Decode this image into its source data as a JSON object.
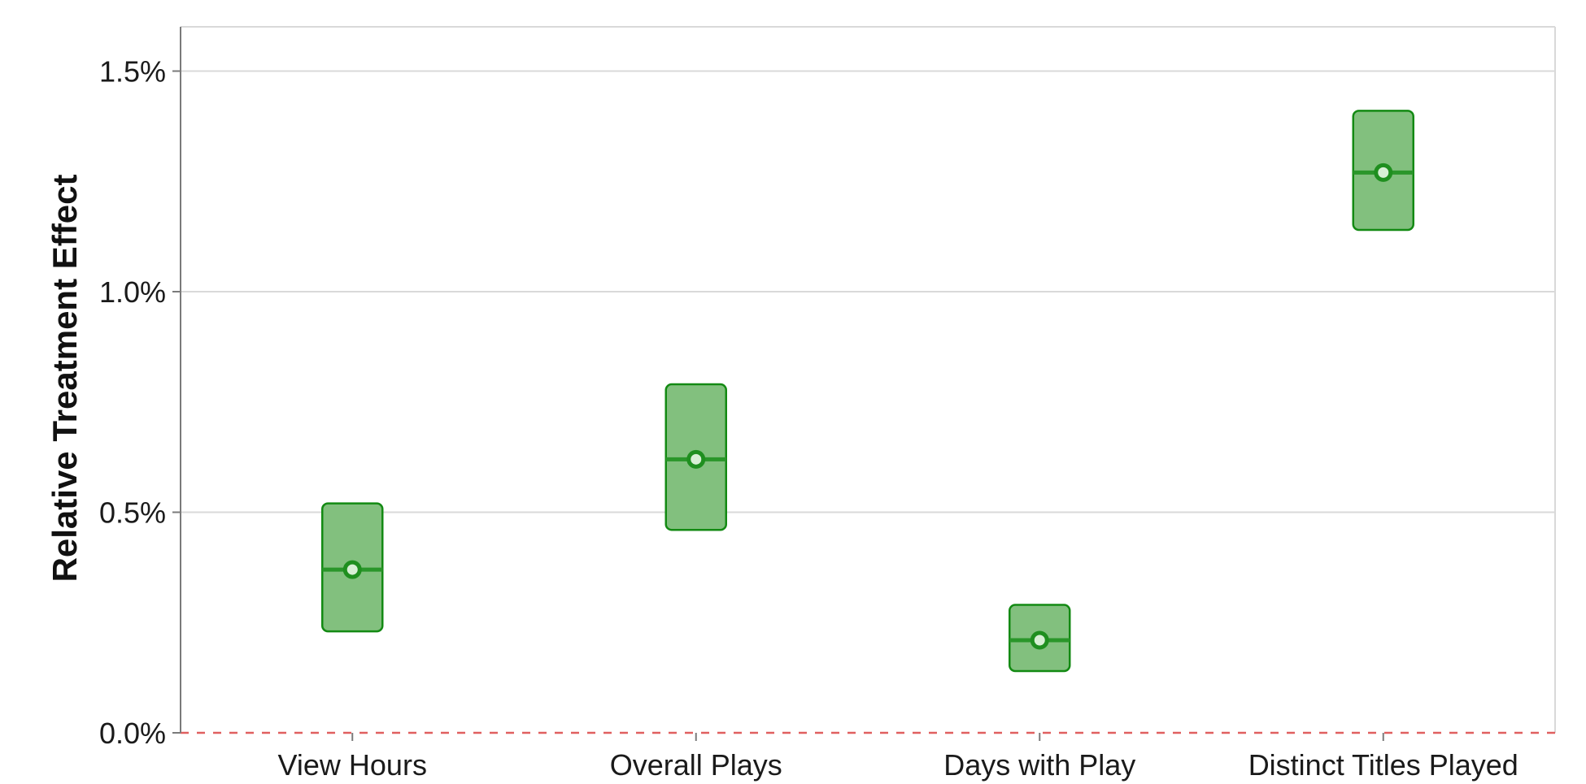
{
  "chart_data": {
    "type": "interval",
    "ylabel": "Relative Treatment Effect",
    "xlabel": "",
    "ylim": [
      0.0,
      1.6
    ],
    "yticks": [
      {
        "value": 0.0,
        "label": "0.0%"
      },
      {
        "value": 0.5,
        "label": "0.5%"
      },
      {
        "value": 1.0,
        "label": "1.0%"
      },
      {
        "value": 1.5,
        "label": "1.5%"
      }
    ],
    "grid": true,
    "reference_line": {
      "value": 0.0,
      "style": "dashed",
      "color": "#e06060"
    },
    "categories": [
      "View Hours",
      "Overall Plays",
      "Days with Play",
      "Distinct Titles Played"
    ],
    "estimates": [
      0.37,
      0.62,
      0.21,
      1.27
    ],
    "ci_lower": [
      0.23,
      0.46,
      0.14,
      1.14
    ],
    "ci_upper": [
      0.52,
      0.79,
      0.29,
      1.41
    ],
    "colors": {
      "box_fill": "#82c07e",
      "box_edge": "#138a13",
      "estimate": "#2a962a",
      "point_fill": "#d8efd5"
    }
  }
}
